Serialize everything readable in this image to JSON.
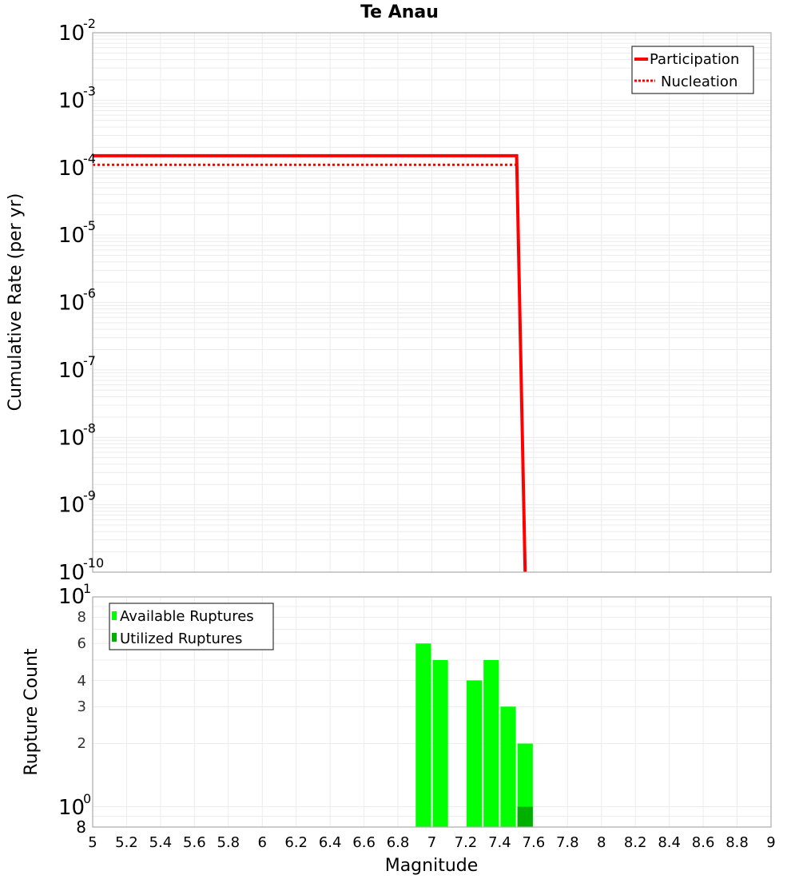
{
  "chart_data": [
    {
      "type": "line",
      "title": "Te Anau",
      "xlabel": "Magnitude",
      "ylabel": "Cumulative Rate (per yr)",
      "yscale": "log",
      "xlim": [
        5,
        9
      ],
      "ylim": [
        1e-10,
        0.01
      ],
      "y_tick_labels": [
        "10^-2",
        "10^-3",
        "10^-4",
        "10^-5",
        "10^-6",
        "10^-7",
        "10^-8",
        "10^-9",
        "10^-10"
      ],
      "grid": true,
      "legend_position": "upper right",
      "series": [
        {
          "name": "Participation",
          "style": "solid",
          "color": "#ff0000",
          "x": [
            5.0,
            7.5,
            7.55
          ],
          "y": [
            0.00015,
            0.00015,
            1e-10
          ]
        },
        {
          "name": "Nucleation",
          "style": "dotted",
          "color": "#ff0000",
          "x": [
            5.0,
            7.5,
            7.55
          ],
          "y": [
            0.00011,
            0.00011,
            1e-10
          ]
        }
      ]
    },
    {
      "type": "bar",
      "xlabel": "Magnitude",
      "ylabel": "Rupture Count",
      "yscale": "log",
      "xlim": [
        5,
        9
      ],
      "ylim": [
        0.8,
        10
      ],
      "x_ticks": [
        5,
        5.2,
        5.4,
        5.6,
        5.8,
        6,
        6.2,
        6.4,
        6.6,
        6.8,
        7,
        7.2,
        7.4,
        7.6,
        7.8,
        8,
        8.2,
        8.4,
        8.6,
        8.8,
        9
      ],
      "y_tick_labels": [
        "10^1",
        "8",
        "6",
        "4",
        "3",
        "2",
        "10^0",
        "8"
      ],
      "grid": true,
      "legend_position": "upper left",
      "bin_width": 0.1,
      "categories": [
        6.95,
        7.05,
        7.25,
        7.35,
        7.45,
        7.55
      ],
      "series": [
        {
          "name": "Available Ruptures",
          "color": "#00ff00",
          "values": [
            6,
            5,
            4,
            5,
            3,
            2
          ]
        },
        {
          "name": "Utilized Ruptures",
          "color": "#00b000",
          "values": [
            0,
            0,
            0,
            0,
            0,
            1
          ]
        }
      ]
    }
  ],
  "top": {
    "title": "Te Anau",
    "ylabel": "Cumulative Rate (per yr)",
    "yticks": [
      {
        "base": "10",
        "exp": "-2"
      },
      {
        "base": "10",
        "exp": "-3"
      },
      {
        "base": "10",
        "exp": "-4"
      },
      {
        "base": "10",
        "exp": "-5"
      },
      {
        "base": "10",
        "exp": "-6"
      },
      {
        "base": "10",
        "exp": "-7"
      },
      {
        "base": "10",
        "exp": "-8"
      },
      {
        "base": "10",
        "exp": "-9"
      },
      {
        "base": "10",
        "exp": "-10"
      }
    ],
    "legend": {
      "participation": "Participation",
      "nucleation": "Nucleation"
    },
    "colors": {
      "line": "#ff0000"
    }
  },
  "bottom": {
    "ylabel": "Rupture Count",
    "ytick_major_top": {
      "base": "10",
      "exp": "1"
    },
    "ytick_major_bottom": {
      "base": "10",
      "exp": "0"
    },
    "yticks_minor": [
      "8",
      "6",
      "4",
      "3",
      "2",
      "8"
    ],
    "legend": {
      "available": "Available Ruptures",
      "utilized": "Utilized Ruptures"
    },
    "colors": {
      "available": "#00ff00",
      "utilized": "#00b000"
    }
  },
  "xaxis": {
    "label": "Magnitude",
    "ticks": [
      "5",
      "5.2",
      "5.4",
      "5.6",
      "5.8",
      "6",
      "6.2",
      "6.4",
      "6.6",
      "6.8",
      "7",
      "7.2",
      "7.4",
      "7.6",
      "7.8",
      "8",
      "8.2",
      "8.4",
      "8.6",
      "8.8",
      "9"
    ]
  }
}
